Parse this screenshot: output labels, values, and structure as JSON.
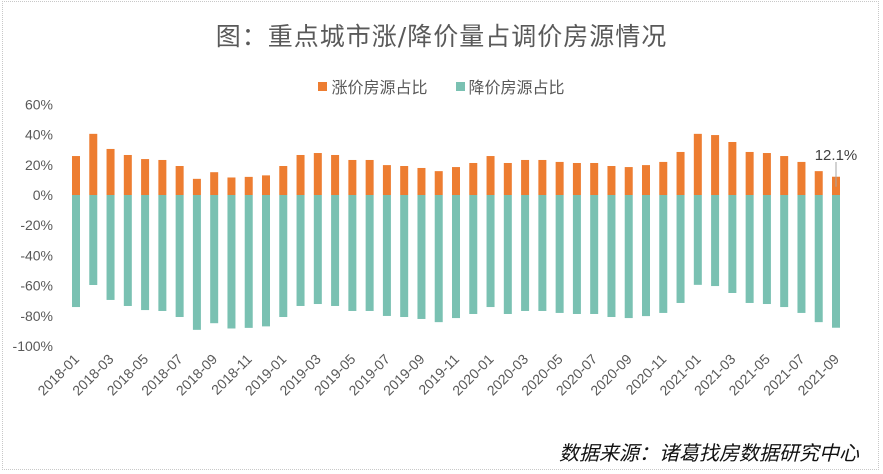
{
  "chart_data": {
    "type": "bar",
    "stacked": true,
    "title": "图：重点城市涨/降价量占调价房源情况",
    "xlabel": "",
    "ylabel": "",
    "ylim": [
      -100,
      60
    ],
    "yticks": [
      60,
      40,
      20,
      0,
      -20,
      -40,
      -60,
      -80,
      -100
    ],
    "ytick_labels": [
      "60%",
      "40%",
      "20%",
      "0%",
      "-20%",
      "-40%",
      "-60%",
      "-80%",
      "-100%"
    ],
    "grid": false,
    "legend_position": "top-center",
    "categories": [
      "2018-01",
      "2018-02",
      "2018-03",
      "2018-04",
      "2018-05",
      "2018-06",
      "2018-07",
      "2018-08",
      "2018-09",
      "2018-10",
      "2018-11",
      "2018-12",
      "2019-01",
      "2019-02",
      "2019-03",
      "2019-04",
      "2019-05",
      "2019-06",
      "2019-07",
      "2019-08",
      "2019-09",
      "2019-10",
      "2019-11",
      "2019-12",
      "2020-01",
      "2020-02",
      "2020-03",
      "2020-04",
      "2020-05",
      "2020-06",
      "2020-07",
      "2020-08",
      "2020-09",
      "2020-10",
      "2020-11",
      "2020-12",
      "2021-01",
      "2021-02",
      "2021-03",
      "2021-04",
      "2021-05",
      "2021-06",
      "2021-07",
      "2021-08",
      "2021-09"
    ],
    "shown_x_tick_labels": [
      "2018-01",
      "2018-03",
      "2018-05",
      "2018-07",
      "2018-09",
      "2018-11",
      "2019-01",
      "2019-03",
      "2019-05",
      "2019-07",
      "2019-09",
      "2019-11",
      "2020-01",
      "2020-03",
      "2020-05",
      "2020-07",
      "2020-09",
      "2020-11",
      "2021-01",
      "2021-03",
      "2021-05",
      "2021-07",
      "2021-09"
    ],
    "series": [
      {
        "name": "涨价房源占比",
        "color": "#ED7D31",
        "values": [
          25.8,
          40.5,
          30.5,
          26.5,
          23.8,
          23.2,
          19.2,
          10.7,
          15.1,
          11.6,
          12.0,
          13.0,
          19.2,
          26.5,
          27.8,
          26.5,
          23.2,
          23.2,
          19.8,
          19.2,
          17.9,
          15.8,
          18.5,
          21.2,
          25.8,
          21.2,
          23.2,
          23.2,
          21.9,
          21.2,
          21.2,
          19.2,
          18.5,
          19.8,
          21.9,
          28.5,
          40.5,
          39.7,
          35.1,
          28.5,
          27.8,
          25.8,
          21.9,
          15.8,
          12.1
        ]
      },
      {
        "name": "降价房源占比",
        "color": "#7AC1B2",
        "values": [
          -74.2,
          -59.6,
          -69.5,
          -73.5,
          -76.2,
          -76.8,
          -80.8,
          -89.3,
          -84.9,
          -88.4,
          -88.0,
          -87.0,
          -80.8,
          -73.5,
          -72.2,
          -73.5,
          -76.8,
          -76.8,
          -80.1,
          -80.8,
          -82.1,
          -84.2,
          -81.5,
          -78.8,
          -74.2,
          -78.8,
          -76.8,
          -76.8,
          -78.1,
          -78.8,
          -78.8,
          -80.8,
          -81.5,
          -80.2,
          -78.1,
          -71.5,
          -59.5,
          -60.3,
          -64.9,
          -71.5,
          -72.2,
          -74.2,
          -78.1,
          -84.2,
          -87.9
        ]
      }
    ],
    "annotations": [
      {
        "category": "2021-09",
        "series": "涨价房源占比",
        "text": "12.1%"
      }
    ]
  },
  "source": "数据来源：诸葛找房数据研究中心"
}
